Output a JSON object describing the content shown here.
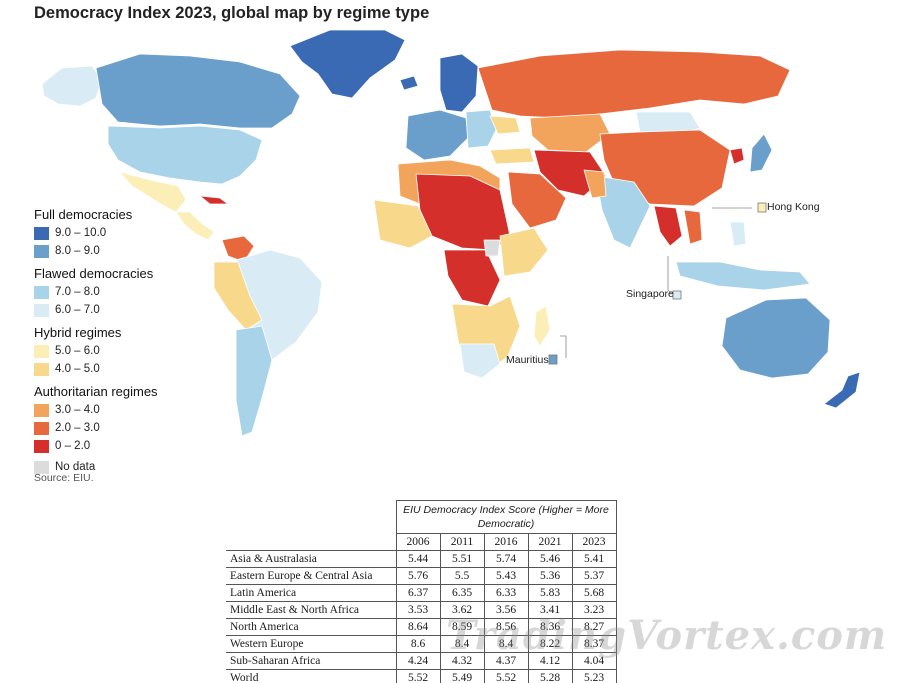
{
  "title": "Democracy Index 2023, global map by regime type",
  "legend": {
    "groups": [
      {
        "name": "Full democracies",
        "items": [
          {
            "label": "9.0 – 10.0",
            "color": "#3a6ab3"
          },
          {
            "label": "8.0 – 9.0",
            "color": "#6a9fcc"
          }
        ]
      },
      {
        "name": "Flawed democracies",
        "items": [
          {
            "label": "7.0 – 8.0",
            "color": "#a9d3e8"
          },
          {
            "label": "6.0 – 7.0",
            "color": "#d9ecf5"
          }
        ]
      },
      {
        "name": "Hybrid regimes",
        "items": [
          {
            "label": "5.0 – 6.0",
            "color": "#fbeeb6"
          },
          {
            "label": "4.0 – 5.0",
            "color": "#f8d98c"
          }
        ]
      },
      {
        "name": "Authoritarian regimes",
        "items": [
          {
            "label": "3.0 – 4.0",
            "color": "#f3a45c"
          },
          {
            "label": "2.0 – 3.0",
            "color": "#e8683e"
          },
          {
            "label": "0 – 2.0",
            "color": "#d42f2a"
          }
        ]
      }
    ],
    "no_data": {
      "label": "No data",
      "color": "#dcdcdc"
    }
  },
  "source": "Source: EIU.",
  "callouts": {
    "hong_kong": {
      "label": "Hong Kong",
      "color": "#fbeeb6"
    },
    "singapore": {
      "label": "Singapore",
      "color": "#d9ecf5"
    },
    "mauritius": {
      "label": "Mauritius",
      "color": "#6a9fcc"
    }
  },
  "table": {
    "caption": "EIU Democracy Index Score (Higher = More Democratic)",
    "years": [
      "2006",
      "2011",
      "2016",
      "2021",
      "2023"
    ],
    "rows": [
      {
        "region": "Asia & Australasia",
        "values": [
          "5.44",
          "5.51",
          "5.74",
          "5.46",
          "5.41"
        ]
      },
      {
        "region": "Eastern Europe & Central Asia",
        "values": [
          "5.76",
          "5.5",
          "5.43",
          "5.36",
          "5.37"
        ]
      },
      {
        "region": "Latin America",
        "values": [
          "6.37",
          "6.35",
          "6.33",
          "5.83",
          "5.68"
        ]
      },
      {
        "region": "Middle East & North Africa",
        "values": [
          "3.53",
          "3.62",
          "3.56",
          "3.41",
          "3.23"
        ]
      },
      {
        "region": "North America",
        "values": [
          "8.64",
          "8.59",
          "8.56",
          "8.36",
          "8.27"
        ]
      },
      {
        "region": "Western Europe",
        "values": [
          "8.6",
          "8.4",
          "8.4",
          "8.22",
          "8.37"
        ]
      },
      {
        "region": "Sub-Saharan Africa",
        "values": [
          "4.24",
          "4.32",
          "4.37",
          "4.12",
          "4.04"
        ]
      },
      {
        "region": "World",
        "values": [
          "5.52",
          "5.49",
          "5.52",
          "5.28",
          "5.23"
        ]
      }
    ]
  },
  "watermark": "TradingVortex.com"
}
